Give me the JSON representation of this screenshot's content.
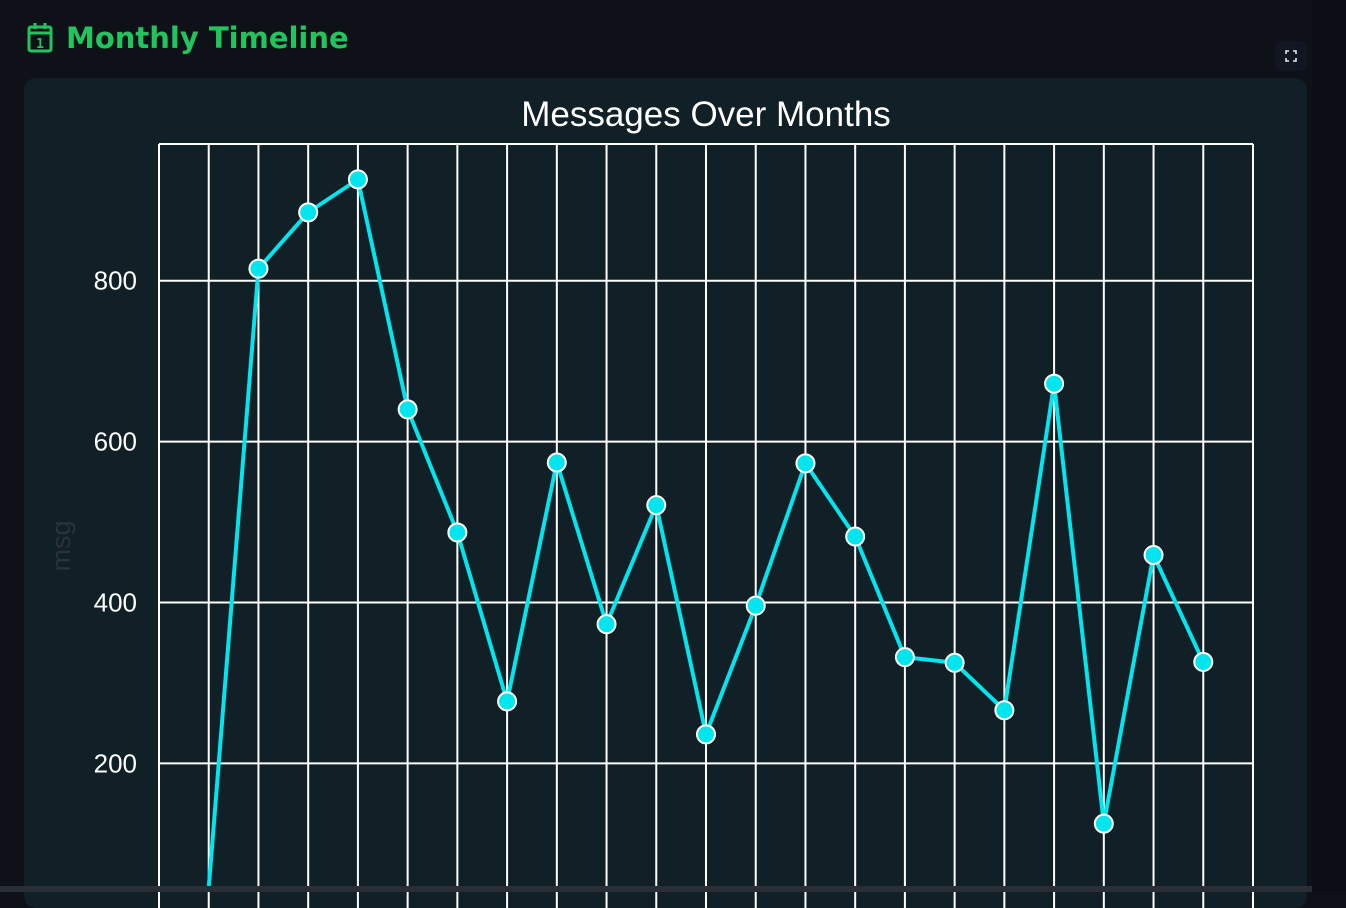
{
  "header": {
    "icon": "calendar-icon",
    "title": "Monthly Timeline"
  },
  "toolbar": {
    "fullscreen_icon": "expand-icon"
  },
  "colors": {
    "accent": "#21c45d",
    "line": "#00e5ee",
    "grid": "#ffffff",
    "plot_background": "#111f26",
    "page_background": "#0e1117"
  },
  "chart_data": {
    "type": "line",
    "title": "Messages Over Months",
    "xlabel": "",
    "ylabel": "msg",
    "ylim": [
      45,
      970
    ],
    "yticks": [
      200,
      400,
      600,
      800
    ],
    "grid": true,
    "markers": true,
    "x": [
      1,
      2,
      3,
      4,
      5,
      6,
      7,
      8,
      9,
      10,
      11,
      12,
      13,
      14,
      15,
      16,
      17,
      18,
      19,
      20,
      21
    ],
    "series": [
      {
        "values": [
          45,
          815,
          885,
          926,
          640,
          487,
          277,
          574,
          373,
          521,
          236,
          396,
          573,
          482,
          332,
          325,
          266,
          672,
          125,
          459,
          326
        ]
      }
    ]
  }
}
